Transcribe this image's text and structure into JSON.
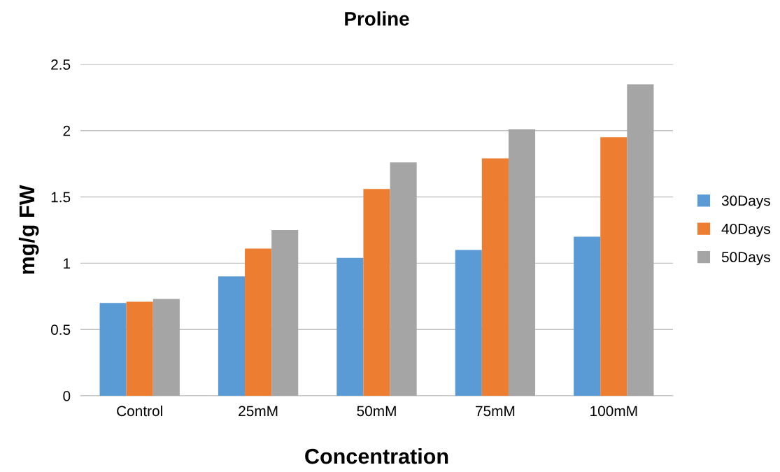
{
  "chart_data": {
    "type": "bar",
    "title": "Proline",
    "xlabel": "Concentration",
    "ylabel": "mg/g FW",
    "categories": [
      "Control",
      "25mM",
      "50mM",
      "75mM",
      "100mM"
    ],
    "series": [
      {
        "name": "30Days",
        "color": "#5b9bd5",
        "values": [
          0.7,
          0.9,
          1.04,
          1.1,
          1.2
        ]
      },
      {
        "name": "40Days",
        "color": "#ed7d31",
        "values": [
          0.71,
          1.11,
          1.56,
          1.79,
          1.95
        ]
      },
      {
        "name": "50Days",
        "color": "#a5a5a5",
        "values": [
          0.73,
          1.25,
          1.76,
          2.01,
          2.35
        ]
      }
    ],
    "ylim": [
      0,
      2.5
    ],
    "yticks": [
      0,
      0.5,
      1,
      1.5,
      2,
      2.5
    ],
    "grid": "y",
    "legend": "right"
  }
}
